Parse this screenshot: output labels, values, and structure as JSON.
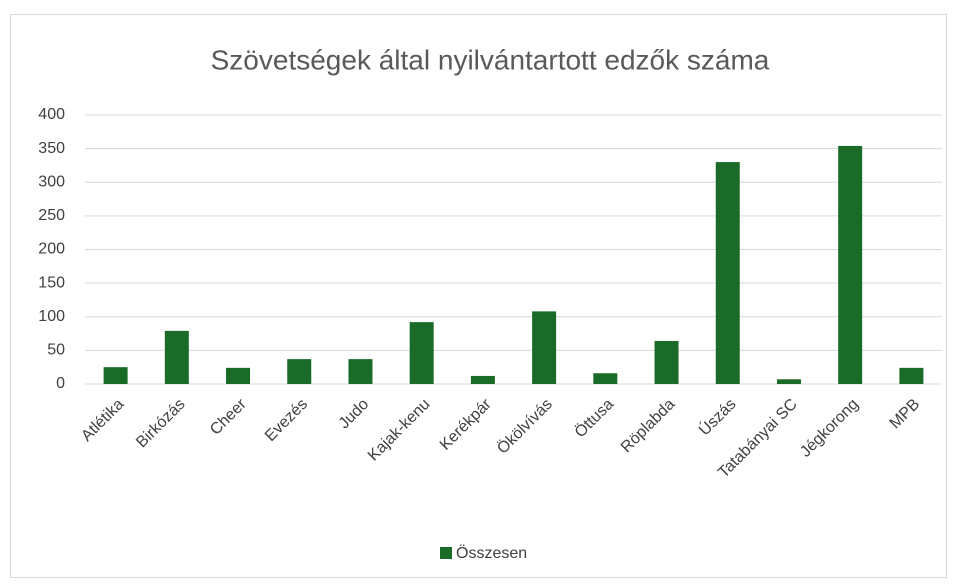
{
  "chart_data": {
    "type": "bar",
    "title": "Szövetségek által nyilvántartott edzők száma",
    "categories": [
      "Atlétika",
      "Birkózás",
      "Cheer",
      "Evezés",
      "Judo",
      "Kajak-kenu",
      "Kerékpár",
      "Ökölvívás",
      "Öttusa",
      "Röplabda",
      "Úszás",
      "Tatabányai SC",
      "Jégkorong",
      "MPB"
    ],
    "series": [
      {
        "name": "Összesen",
        "color": "#1a6b27",
        "values": [
          25,
          79,
          24,
          37,
          37,
          92,
          12,
          108,
          16,
          64,
          330,
          7,
          354,
          24
        ]
      }
    ],
    "ylim": [
      0,
      400
    ],
    "yticks": [
      0,
      50,
      100,
      150,
      200,
      250,
      300,
      350,
      400
    ],
    "grid": true,
    "legend": "bottom"
  }
}
